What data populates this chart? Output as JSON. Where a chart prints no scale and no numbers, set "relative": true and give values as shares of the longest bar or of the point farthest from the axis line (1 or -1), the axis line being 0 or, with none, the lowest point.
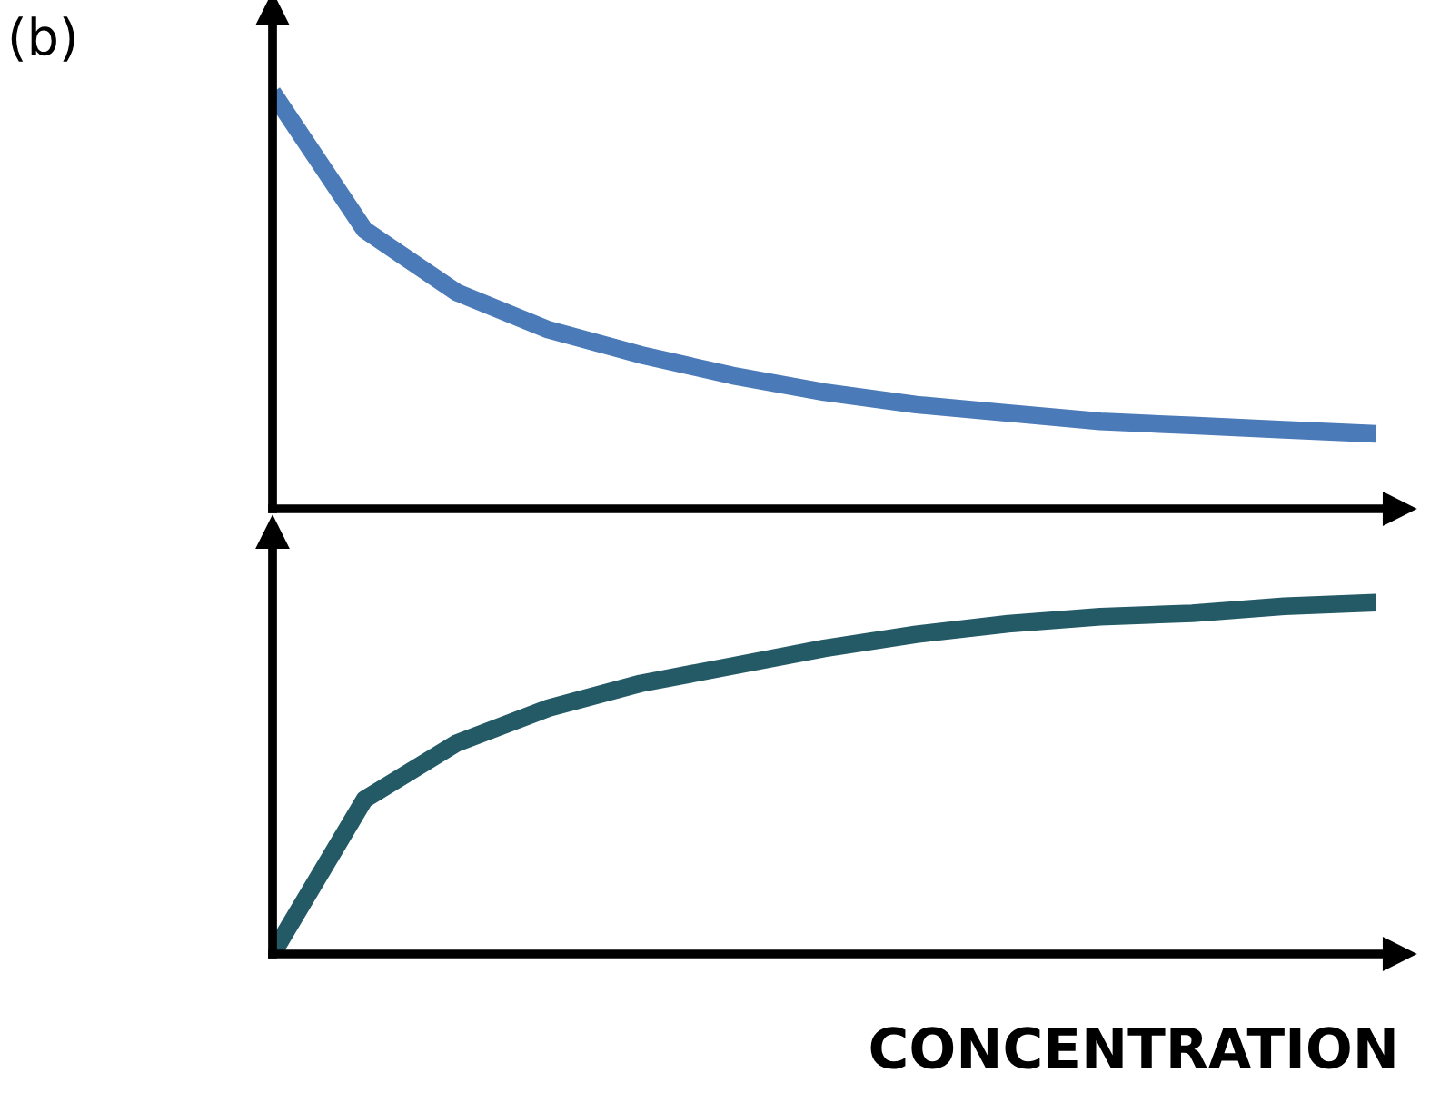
{
  "chart_data": [
    {
      "type": "line",
      "title": "(b)",
      "relative": true,
      "categories": [
        null,
        null,
        null,
        null,
        null,
        null,
        null,
        null,
        null,
        null,
        null,
        null,
        null
      ],
      "series": [
        {
          "color": "#4a7ab8",
          "values": [
            1.0,
            0.67,
            0.52,
            0.43,
            0.37,
            0.32,
            0.28,
            0.25,
            0.23,
            0.21,
            0.2,
            0.19,
            0.18
          ]
        }
      ]
    },
    {
      "type": "line",
      "xlabel": "CONCENTRATION",
      "relative": true,
      "categories": [
        null,
        null,
        null,
        null,
        null,
        null,
        null,
        null,
        null,
        null,
        null,
        null,
        null
      ],
      "series": [
        {
          "color": "#235a66",
          "values": [
            0.0,
            0.44,
            0.6,
            0.7,
            0.77,
            0.82,
            0.87,
            0.91,
            0.94,
            0.96,
            0.97,
            0.99,
            1.0
          ]
        }
      ]
    }
  ]
}
